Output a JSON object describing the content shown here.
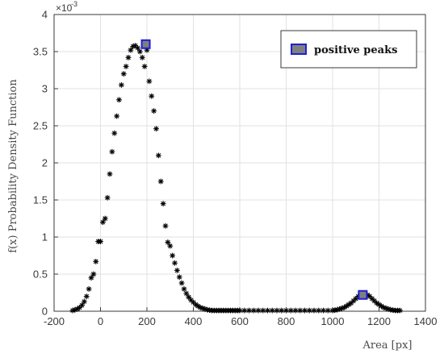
{
  "chart_data": {
    "type": "scatter",
    "xlabel": "Area [px]",
    "ylabel": "f(x) Probability Density Function",
    "y_exponent_base": "×10",
    "y_exponent_power": "-3",
    "xlim": [
      -200,
      1400
    ],
    "ylim": [
      0,
      4
    ],
    "x_ticks": [
      -200,
      0,
      200,
      400,
      600,
      800,
      1000,
      1200,
      1400
    ],
    "y_ticks": [
      0,
      0.5,
      1,
      1.5,
      2,
      2.5,
      3,
      3.5,
      4
    ],
    "grid": true,
    "legend_position": "top-right",
    "colors": {
      "pdf_marker": "#000000",
      "peak_fill": "#7f7f7f",
      "peak_edge": "#1f1fd6",
      "grid": "#e2e2e2"
    },
    "series": [
      {
        "marker": "asterisk",
        "x": [
          -120,
          -110,
          -100,
          -90,
          -80,
          -70,
          -60,
          -50,
          -40,
          -30,
          -20,
          -10,
          0,
          10,
          20,
          30,
          40,
          50,
          60,
          70,
          80,
          90,
          100,
          110,
          120,
          130,
          140,
          150,
          160,
          170,
          180,
          190,
          200,
          210,
          220,
          230,
          240,
          250,
          260,
          270,
          280,
          290,
          300,
          310,
          320,
          330,
          340,
          350,
          360,
          370,
          380,
          390,
          400,
          410,
          420,
          430,
          440,
          450,
          460,
          470,
          480,
          490,
          500,
          510,
          520,
          530,
          540,
          550,
          560,
          570,
          580,
          590,
          600,
          620,
          640,
          660,
          680,
          700,
          720,
          740,
          760,
          780,
          800,
          820,
          840,
          860,
          880,
          900,
          920,
          940,
          960,
          980,
          1000,
          1010,
          1020,
          1030,
          1040,
          1050,
          1060,
          1070,
          1080,
          1090,
          1100,
          1110,
          1120,
          1130,
          1140,
          1150,
          1160,
          1170,
          1180,
          1190,
          1200,
          1210,
          1220,
          1230,
          1240,
          1250,
          1260,
          1270,
          1280,
          1290
        ],
        "y": [
          0.01,
          0.02,
          0.03,
          0.05,
          0.08,
          0.13,
          0.2,
          0.3,
          0.45,
          0.5,
          0.67,
          0.94,
          0.94,
          1.2,
          1.25,
          1.53,
          1.85,
          2.15,
          2.4,
          2.63,
          2.85,
          3.05,
          3.2,
          3.3,
          3.42,
          3.52,
          3.57,
          3.58,
          3.55,
          3.5,
          3.42,
          3.3,
          3.52,
          3.1,
          2.9,
          2.7,
          2.46,
          2.1,
          1.75,
          1.45,
          1.15,
          0.93,
          0.88,
          0.75,
          0.65,
          0.55,
          0.46,
          0.38,
          0.3,
          0.24,
          0.19,
          0.15,
          0.12,
          0.09,
          0.07,
          0.05,
          0.04,
          0.03,
          0.02,
          0.015,
          0.01,
          0.01,
          0.01,
          0.01,
          0.01,
          0.01,
          0.01,
          0.01,
          0.01,
          0.01,
          0.01,
          0.01,
          0.01,
          0.01,
          0.01,
          0.01,
          0.01,
          0.01,
          0.01,
          0.01,
          0.01,
          0.01,
          0.01,
          0.01,
          0.01,
          0.01,
          0.01,
          0.01,
          0.01,
          0.01,
          0.01,
          0.01,
          0.01,
          0.015,
          0.02,
          0.03,
          0.04,
          0.05,
          0.07,
          0.09,
          0.11,
          0.14,
          0.17,
          0.2,
          0.22,
          0.23,
          0.23,
          0.22,
          0.2,
          0.17,
          0.14,
          0.11,
          0.09,
          0.07,
          0.05,
          0.04,
          0.03,
          0.02,
          0.015,
          0.01,
          0.01,
          0.01
        ]
      },
      {
        "name": "positive peaks",
        "marker": "square",
        "x": [
          195,
          1130
        ],
        "y": [
          3.6,
          0.22
        ]
      }
    ]
  }
}
